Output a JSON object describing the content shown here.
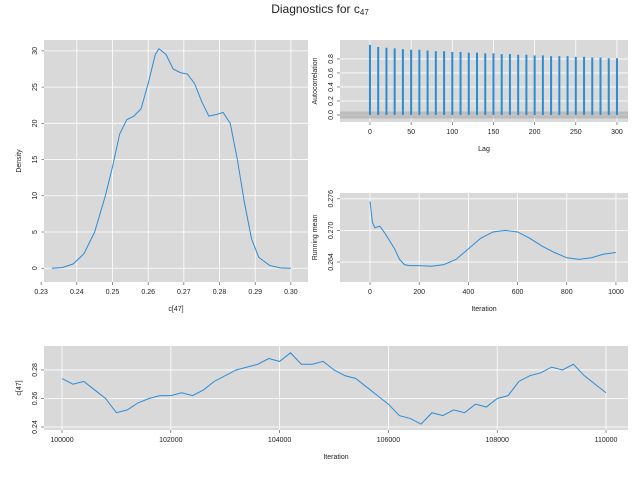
{
  "title": "Diagnostics for c",
  "title_subscript": "47",
  "chart_data": [
    {
      "type": "line",
      "xlabel": "c[47]",
      "ylabel": "Density",
      "color": "#2b8cd6",
      "grid": true,
      "x": [
        0.233,
        0.236,
        0.239,
        0.242,
        0.245,
        0.248,
        0.25,
        0.252,
        0.254,
        0.256,
        0.258,
        0.26,
        0.262,
        0.263,
        0.265,
        0.267,
        0.269,
        0.271,
        0.273,
        0.275,
        0.277,
        0.279,
        0.281,
        0.283,
        0.285,
        0.287,
        0.289,
        0.291,
        0.294,
        0.297,
        0.3
      ],
      "values": [
        0,
        0.1,
        0.6,
        2,
        5,
        10,
        14,
        18.5,
        20.5,
        21,
        22,
        25.5,
        29.5,
        30.3,
        29.5,
        27.5,
        27,
        26.8,
        25.5,
        23,
        21,
        21.2,
        21.5,
        20,
        15,
        9,
        4,
        1.5,
        0.4,
        0.05,
        0
      ],
      "xlim": [
        0.2308,
        0.3048
      ],
      "xticks": [
        0.23,
        0.24,
        0.25,
        0.26,
        0.27,
        0.28,
        0.29,
        {
          "value": 0.3,
          "label": "0.30"
        }
      ],
      "ylim": [
        -1.9,
        31.5
      ],
      "yticks": [
        0,
        5,
        10,
        15,
        20,
        25,
        30
      ]
    },
    {
      "type": "bar",
      "xlabel": "Lag",
      "ylabel": "Autocorrelation",
      "color": "#2b8cd6",
      "grid": true,
      "x": [
        0,
        10,
        20,
        30,
        40,
        50,
        60,
        70,
        80,
        90,
        100,
        110,
        120,
        130,
        140,
        150,
        160,
        170,
        180,
        190,
        200,
        210,
        220,
        230,
        240,
        250,
        260,
        270,
        280,
        290,
        300
      ],
      "values": [
        1.0,
        0.97,
        0.96,
        0.95,
        0.94,
        0.93,
        0.93,
        0.92,
        0.91,
        0.91,
        0.9,
        0.9,
        0.89,
        0.89,
        0.88,
        0.88,
        0.87,
        0.87,
        0.86,
        0.86,
        0.85,
        0.85,
        0.84,
        0.84,
        0.84,
        0.83,
        0.83,
        0.82,
        0.82,
        0.81,
        0.81
      ],
      "xlim": [
        -36.4,
        313.4
      ],
      "xticks": [
        0,
        50,
        100,
        150,
        200,
        250,
        300
      ],
      "ylim": [
        -0.1,
        1.07
      ],
      "yticks": [
        {
          "value": 0,
          "label": "0.0"
        },
        0.2,
        0.4,
        0.6,
        0.8
      ]
    },
    {
      "type": "line",
      "xlabel": "Iteration",
      "ylabel": "Running mean",
      "color": "#2b8cd6",
      "grid": true,
      "x": [
        0,
        10,
        20,
        40,
        60,
        80,
        100,
        120,
        140,
        160,
        200,
        250,
        300,
        350,
        400,
        450,
        500,
        550,
        600,
        650,
        700,
        750,
        800,
        850,
        900,
        950,
        1000
      ],
      "values": [
        0.2755,
        0.2715,
        0.2705,
        0.2708,
        0.2695,
        0.268,
        0.2665,
        0.2645,
        0.2635,
        0.2633,
        0.2633,
        0.2632,
        0.2635,
        0.2645,
        0.2665,
        0.2685,
        0.2697,
        0.27,
        0.2697,
        0.2685,
        0.267,
        0.2658,
        0.2648,
        0.2645,
        0.2648,
        0.2655,
        0.2658
      ],
      "xlim": [
        -122,
        1049
      ],
      "xticks": [
        0,
        200,
        400,
        600,
        800,
        1000
      ],
      "ylim": [
        0.2602,
        0.2771
      ],
      "yticks": [
        0.264,
        {
          "value": 0.27,
          "label": "0.270"
        },
        0.276
      ]
    },
    {
      "type": "line",
      "xlabel": "Iteration",
      "ylabel": "c[47]",
      "color": "#2b8cd6",
      "grid": true,
      "x": [
        100000,
        100200,
        100400,
        100600,
        100800,
        101000,
        101200,
        101400,
        101600,
        101800,
        102000,
        102200,
        102400,
        102600,
        102800,
        103000,
        103200,
        103400,
        103600,
        103800,
        104000,
        104200,
        104400,
        104600,
        104800,
        105000,
        105200,
        105400,
        105600,
        105800,
        106000,
        106200,
        106400,
        106600,
        106800,
        107000,
        107200,
        107400,
        107600,
        107800,
        108000,
        108200,
        108400,
        108600,
        108800,
        109000,
        109200,
        109400,
        109600,
        109800,
        110000
      ],
      "values": [
        0.274,
        0.27,
        0.272,
        0.266,
        0.26,
        0.25,
        0.252,
        0.257,
        0.26,
        0.262,
        0.262,
        0.264,
        0.262,
        0.266,
        0.272,
        0.276,
        0.28,
        0.282,
        0.284,
        0.288,
        0.286,
        0.292,
        0.284,
        0.284,
        0.286,
        0.28,
        0.276,
        0.274,
        0.268,
        0.262,
        0.256,
        0.248,
        0.246,
        0.242,
        0.25,
        0.248,
        0.252,
        0.25,
        0.256,
        0.254,
        0.26,
        0.262,
        0.272,
        0.276,
        0.278,
        0.282,
        0.28,
        0.284,
        0.276,
        0.27,
        0.264
      ],
      "xlim": [
        99669,
        110404
      ],
      "xticks": [
        100000,
        102000,
        104000,
        106000,
        108000,
        110000
      ],
      "ylim": [
        0.2379,
        0.2968
      ],
      "yticks": [
        0.24,
        0.26,
        0.28
      ]
    }
  ]
}
